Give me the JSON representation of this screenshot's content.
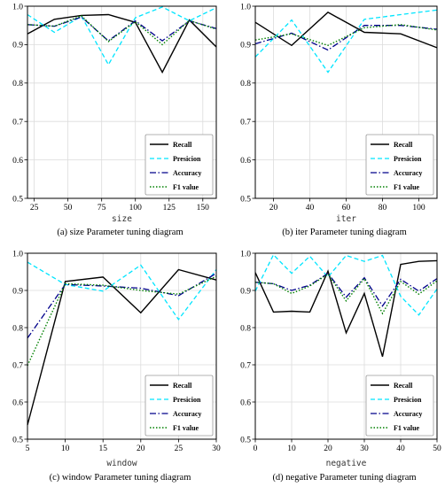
{
  "colors": {
    "recall": "#000000",
    "precision": "#00e5ff",
    "accuracy": "#00008b",
    "f1": "#008000",
    "grid": "#dcdcdc"
  },
  "chart_data": [
    {
      "type": "line",
      "caption": "(a) size Parameter tuning diagram",
      "xlabel": "size",
      "ylabel": "",
      "xlim": [
        20,
        160
      ],
      "ylim": [
        0.5,
        1.0
      ],
      "xticks": [
        25,
        50,
        75,
        100,
        125,
        150
      ],
      "yticks": [
        0.5,
        0.6,
        0.7,
        0.8,
        0.9,
        1.0
      ],
      "grid": true,
      "legend_position": "bottom-right",
      "x": [
        20,
        40,
        60,
        80,
        100,
        120,
        140,
        160
      ],
      "series": [
        {
          "name": "Recall",
          "values": [
            0.928,
            0.966,
            0.976,
            0.978,
            0.958,
            0.828,
            0.964,
            0.894
          ]
        },
        {
          "name": "Presicion",
          "values": [
            0.978,
            0.932,
            0.974,
            0.848,
            0.97,
            0.998,
            0.962,
            0.996
          ]
        },
        {
          "name": "Accuracy",
          "values": [
            0.952,
            0.948,
            0.972,
            0.91,
            0.962,
            0.91,
            0.962,
            0.942
          ]
        },
        {
          "name": "F1 value",
          "values": [
            0.952,
            0.948,
            0.975,
            0.908,
            0.96,
            0.9,
            0.963,
            0.94
          ]
        }
      ]
    },
    {
      "type": "line",
      "caption": "(b) iter Parameter tuning diagram",
      "xlabel": "iter",
      "ylabel": "",
      "xlim": [
        10,
        110
      ],
      "ylim": [
        0.5,
        1.0
      ],
      "xticks": [
        20,
        40,
        60,
        80,
        100
      ],
      "yticks": [
        0.5,
        0.6,
        0.7,
        0.8,
        0.9,
        1.0
      ],
      "grid": true,
      "legend_position": "bottom-right",
      "x": [
        10,
        30,
        50,
        70,
        90,
        110
      ],
      "series": [
        {
          "name": "Recall",
          "values": [
            0.958,
            0.898,
            0.984,
            0.932,
            0.928,
            0.892
          ]
        },
        {
          "name": "Presicion",
          "values": [
            0.868,
            0.964,
            0.828,
            0.966,
            0.978,
            0.99
          ]
        },
        {
          "name": "Accuracy",
          "values": [
            0.902,
            0.93,
            0.886,
            0.95,
            0.95,
            0.94
          ]
        },
        {
          "name": "F1 value",
          "values": [
            0.912,
            0.928,
            0.898,
            0.944,
            0.952,
            0.938
          ]
        }
      ]
    },
    {
      "type": "line",
      "caption": "(c) window Parameter tuning diagram",
      "xlabel": "window",
      "ylabel": "",
      "xlim": [
        5,
        30
      ],
      "ylim": [
        0.5,
        1.0
      ],
      "xticks": [
        5,
        10,
        15,
        20,
        25,
        30
      ],
      "yticks": [
        0.5,
        0.6,
        0.7,
        0.8,
        0.9,
        1.0
      ],
      "grid": true,
      "legend_position": "bottom-right",
      "x": [
        5,
        10,
        15,
        20,
        25,
        30
      ],
      "series": [
        {
          "name": "Recall",
          "values": [
            0.538,
            0.924,
            0.936,
            0.84,
            0.956,
            0.928
          ]
        },
        {
          "name": "Presicion",
          "values": [
            0.976,
            0.916,
            0.898,
            0.968,
            0.822,
            0.956
          ]
        },
        {
          "name": "Accuracy",
          "values": [
            0.772,
            0.916,
            0.912,
            0.906,
            0.886,
            0.946
          ]
        },
        {
          "name": "F1 value",
          "values": [
            0.698,
            0.918,
            0.914,
            0.9,
            0.89,
            0.938
          ]
        }
      ]
    },
    {
      "type": "line",
      "caption": "(d) negative Parameter tuning diagram",
      "xlabel": "negative",
      "ylabel": "",
      "xlim": [
        0,
        50
      ],
      "ylim": [
        0.5,
        1.0
      ],
      "xticks": [
        0,
        10,
        20,
        30,
        40,
        50
      ],
      "yticks": [
        0.5,
        0.6,
        0.7,
        0.8,
        0.9,
        1.0
      ],
      "grid": true,
      "legend_position": "bottom-right",
      "x": [
        0,
        5,
        10,
        15,
        20,
        25,
        30,
        35,
        40,
        45,
        50
      ],
      "series": [
        {
          "name": "Recall",
          "values": [
            0.948,
            0.842,
            0.844,
            0.842,
            0.952,
            0.786,
            0.892,
            0.722,
            0.97,
            0.978,
            0.98
          ]
        },
        {
          "name": "Presicion",
          "values": [
            0.898,
            0.996,
            0.946,
            0.992,
            0.936,
            0.994,
            0.978,
            0.994,
            0.884,
            0.834,
            0.904
          ]
        },
        {
          "name": "Accuracy",
          "values": [
            0.922,
            0.918,
            0.9,
            0.914,
            0.946,
            0.882,
            0.934,
            0.858,
            0.93,
            0.898,
            0.932
          ]
        },
        {
          "name": "F1 value",
          "values": [
            0.922,
            0.918,
            0.892,
            0.912,
            0.944,
            0.872,
            0.932,
            0.838,
            0.924,
            0.89,
            0.926
          ]
        }
      ]
    }
  ]
}
